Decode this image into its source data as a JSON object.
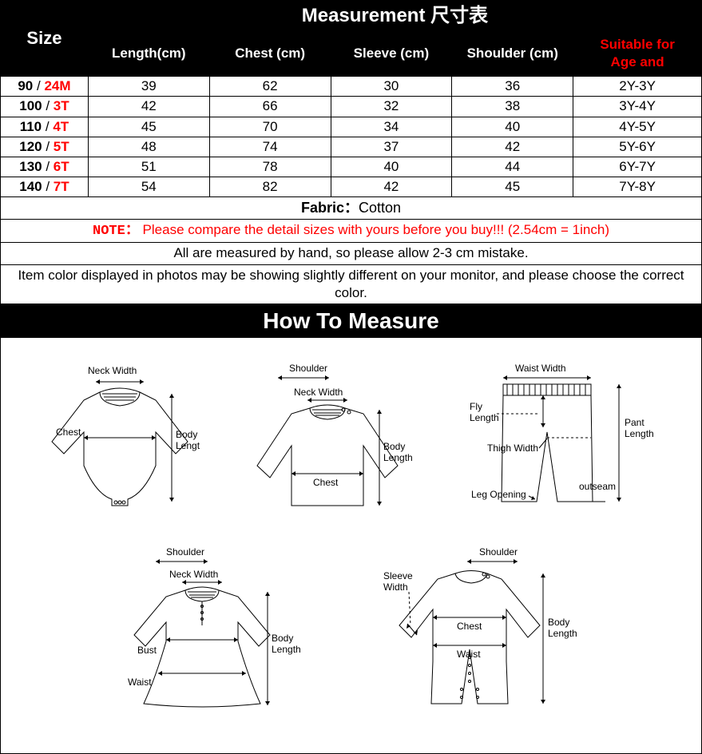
{
  "table": {
    "measurement_title": "Measurement 尺寸表",
    "size_header": "Size",
    "columns": [
      "Length(cm)",
      "Chest (cm)",
      "Sleeve (cm)",
      "Shoulder (cm)"
    ],
    "suitable_header_line1": "Suitable for",
    "suitable_header_line2": "Age and",
    "rows": [
      {
        "size_a": "90",
        "size_b": "24M",
        "cells": [
          "39",
          "62",
          "30",
          "36"
        ],
        "age": "2Y-3Y"
      },
      {
        "size_a": "100",
        "size_b": "3T",
        "cells": [
          "42",
          "66",
          "32",
          "38"
        ],
        "age": "3Y-4Y"
      },
      {
        "size_a": "110",
        "size_b": "4T",
        "cells": [
          "45",
          "70",
          "34",
          "40"
        ],
        "age": "4Y-5Y"
      },
      {
        "size_a": "120",
        "size_b": "5T",
        "cells": [
          "48",
          "74",
          "37",
          "42"
        ],
        "age": "5Y-6Y"
      },
      {
        "size_a": "130",
        "size_b": "6T",
        "cells": [
          "51",
          "78",
          "40",
          "44"
        ],
        "age": "6Y-7Y"
      },
      {
        "size_a": "140",
        "size_b": "7T",
        "cells": [
          "54",
          "82",
          "42",
          "45"
        ],
        "age": "7Y-8Y"
      }
    ],
    "fabric_label": "Fabric",
    "fabric_sep": "：",
    "fabric_value": "Cotton",
    "note_label": "NOTE：",
    "note_text": "  Please compare the detail sizes with yours before you buy!!! (2.54cm = 1inch)",
    "note2": "All are measured by hand, so please allow 2-3 cm mistake.",
    "note3": "Item color displayed in photos may be showing slightly different on your monitor, and please choose the correct color."
  },
  "howto_title": "How To Measure",
  "diagram_labels": {
    "neck_width": "Neck Width",
    "chest": "Chest",
    "body_length": "Body\nLength",
    "shoulder": "Shoulder",
    "waist_width": "Waist Width",
    "fly_length": "Fly\nLength",
    "thigh_width": "Thigh Width",
    "leg_opening": "Leg Opening",
    "outseam": "outseam",
    "pant_length": "Pant\nLength",
    "bust": "Bust",
    "waist": "Waist",
    "sleeve_width": "Sleeve\nWidth"
  },
  "colors": {
    "black": "#000000",
    "white": "#ffffff",
    "red": "#ff0000"
  }
}
